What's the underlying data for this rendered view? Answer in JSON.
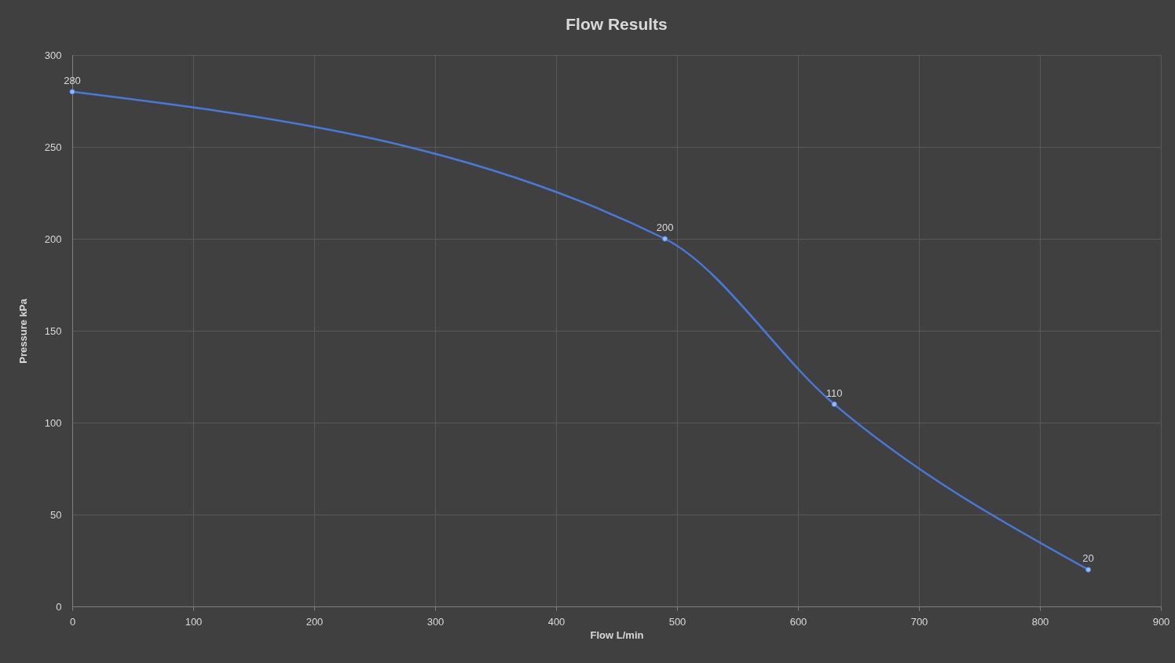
{
  "chart_data": {
    "type": "line",
    "title": "Flow Results",
    "xlabel": "Flow L/min",
    "ylabel": "Pressure kPa",
    "x": [
      0,
      490,
      630,
      840
    ],
    "series": [
      {
        "color": "#4a78d8",
        "values": [
          280,
          200,
          110,
          20
        ]
      }
    ],
    "xlim": [
      0,
      900
    ],
    "xticks": [
      0,
      100,
      200,
      300,
      400,
      500,
      600,
      700,
      800,
      900
    ],
    "ylim": [
      0,
      300
    ],
    "yticks": [
      0,
      50,
      100,
      150,
      200,
      250,
      300
    ],
    "grid": true,
    "marker": "circle",
    "data_labels": true
  }
}
